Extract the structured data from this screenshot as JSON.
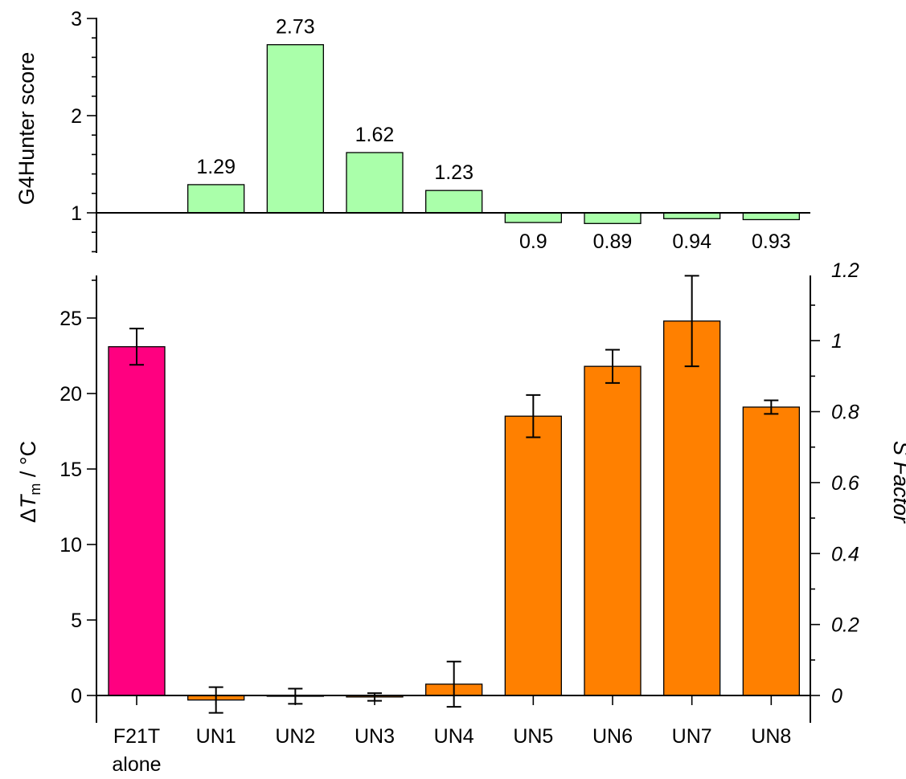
{
  "chart_data": [
    {
      "type": "bar",
      "panel": "top",
      "ylabel": "G4Hunter score",
      "ylim": [
        0.6,
        3.0
      ],
      "baseline": 1,
      "yticks": [
        1,
        2,
        3
      ],
      "categories": [
        "F21T alone",
        "UN1",
        "UN2",
        "UN3",
        "UN4",
        "UN5",
        "UN6",
        "UN7",
        "UN8"
      ],
      "values": [
        null,
        1.29,
        2.73,
        1.62,
        1.23,
        0.9,
        0.89,
        0.94,
        0.93
      ],
      "data_labels": [
        "",
        "1.29",
        "2.73",
        "1.62",
        "1.23",
        "0.9",
        "0.89",
        "0.94",
        "0.93"
      ],
      "colors": {
        "bar": "#aaffaa"
      }
    },
    {
      "type": "bar",
      "panel": "bottom",
      "ylabel_prefix": "Δ",
      "ylabel_T": "T",
      "ylabel_sub": "m",
      "ylabel_suffix": " / °C",
      "ylim": [
        -1.5,
        28
      ],
      "yticks": [
        0,
        5,
        10,
        15,
        20,
        25
      ],
      "y2label": "S Factor",
      "y2ticks": [
        0,
        0.2,
        0.4,
        0.6,
        0.8,
        1,
        1.2
      ],
      "y2tick_labels": [
        "0",
        "0.2",
        "0.4",
        "0.6",
        "0.8",
        "1",
        "1.2"
      ],
      "categories": [
        "F21T",
        "UN1",
        "UN2",
        "UN3",
        "UN4",
        "UN5",
        "UN6",
        "UN7",
        "UN8"
      ],
      "category_sublabels": [
        "alone",
        "",
        "",
        "",
        "",
        "",
        "",
        "",
        ""
      ],
      "values": [
        23.1,
        -0.3,
        -0.05,
        -0.1,
        0.75,
        18.5,
        21.8,
        24.8,
        19.1
      ],
      "errors": [
        1.2,
        0.85,
        0.5,
        0.25,
        1.5,
        1.4,
        1.1,
        3.0,
        0.45
      ],
      "colors": [
        "#ff0080",
        "#ff8000",
        "#ff8000",
        "#ff8000",
        "#ff8000",
        "#ff8000",
        "#ff8000",
        "#ff8000",
        "#ff8000"
      ]
    }
  ]
}
